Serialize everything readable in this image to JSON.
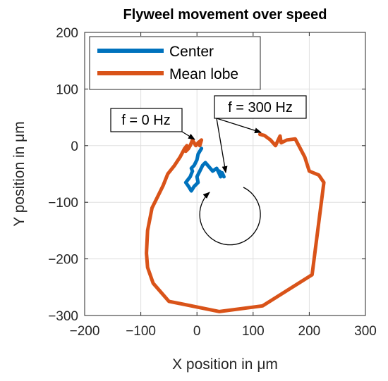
{
  "chart_data": {
    "type": "line",
    "title": "Flyweel movement over speed",
    "xlabel": "X position in μm",
    "ylabel": "Y position in μm",
    "xlim": [
      -200,
      300
    ],
    "ylim": [
      -300,
      200
    ],
    "xticks": [
      -200,
      -100,
      0,
      100,
      200,
      300
    ],
    "yticks": [
      -300,
      -200,
      -100,
      0,
      100,
      200
    ],
    "xtick_labels": [
      "−200",
      "−100",
      "0",
      "100",
      "200",
      "300"
    ],
    "ytick_labels": [
      "−300",
      "−200",
      "−100",
      "0",
      "100",
      "200"
    ],
    "grid": true,
    "legend_position": "top-left",
    "series": [
      {
        "name": "Center",
        "color": "#0072BD",
        "x": [
          8,
          5,
          2,
          0,
          -5,
          -10,
          -8,
          -12,
          -20,
          -15,
          -10,
          -5,
          2,
          0,
          5,
          10,
          15,
          22,
          28,
          35,
          40,
          42,
          40,
          45,
          48,
          45
        ],
        "y": [
          -5,
          -10,
          -15,
          -25,
          -35,
          -40,
          -45,
          -55,
          -65,
          -72,
          -80,
          -72,
          -65,
          -55,
          -45,
          -35,
          -30,
          -38,
          -45,
          -40,
          -50,
          -55,
          -45,
          -50,
          -55,
          -48
        ]
      },
      {
        "name": "Mean lobe",
        "color": "#D95319",
        "x": [
          5,
          8,
          2,
          -2,
          -8,
          -12,
          -15,
          -20,
          -18,
          -22,
          -30,
          -40,
          -52,
          -60,
          -70,
          -80,
          -88,
          -90,
          -88,
          -78,
          -50,
          40,
          117,
          205,
          226,
          217,
          200,
          192,
          175,
          160,
          150,
          148,
          140,
          131,
          120,
          112
        ],
        "y": [
          0,
          10,
          5,
          0,
          10,
          0,
          -5,
          -10,
          0,
          -5,
          -20,
          -35,
          -50,
          -70,
          -90,
          -110,
          -150,
          -190,
          -215,
          -243,
          -275,
          -293,
          -283,
          -228,
          -65,
          -52,
          -45,
          -20,
          12,
          10,
          5,
          17,
          0,
          10,
          18,
          20
        ]
      }
    ],
    "annotations": [
      {
        "text": "f = 0 Hz"
      },
      {
        "text": "f = 300 Hz"
      }
    ]
  }
}
